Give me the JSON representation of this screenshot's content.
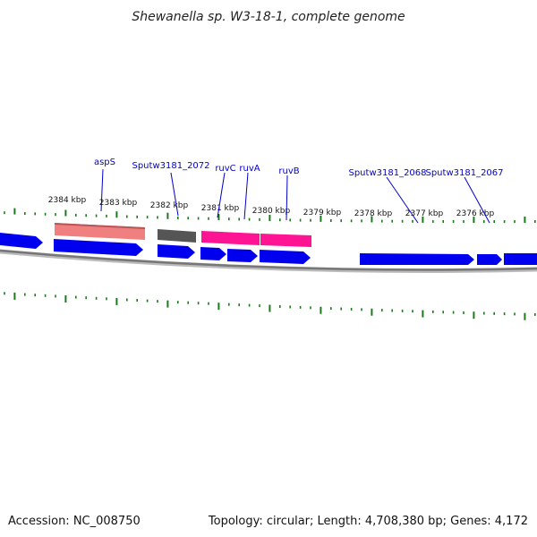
{
  "title": "Shewanella sp. W3-18-1, complete genome",
  "accession": "Accession: NC_008750",
  "summary": "Topology: circular; Length: 4,708,380 bp; Genes: 4,172",
  "colors": {
    "blue_gene": "#0000ee",
    "salmon_gene": "#f08080",
    "gray_gene": "#555555",
    "pink_gene": "#ff1493",
    "tick": "#1a7a1a",
    "backbone": "#888888"
  },
  "kbp_labels": [
    "2384 kbp",
    "2383 kbp",
    "2382 kbp",
    "2381 kbp",
    "2380 kbp",
    "2379 kbp",
    "2378 kbp",
    "2377 kbp",
    "2376 kbp"
  ],
  "gene_labels": [
    "aspS",
    "Sputw3181_2072",
    "ruvC",
    "ruvA",
    "ruvB",
    "Sputw3181_2068",
    "Sputw3181_2067"
  ]
}
